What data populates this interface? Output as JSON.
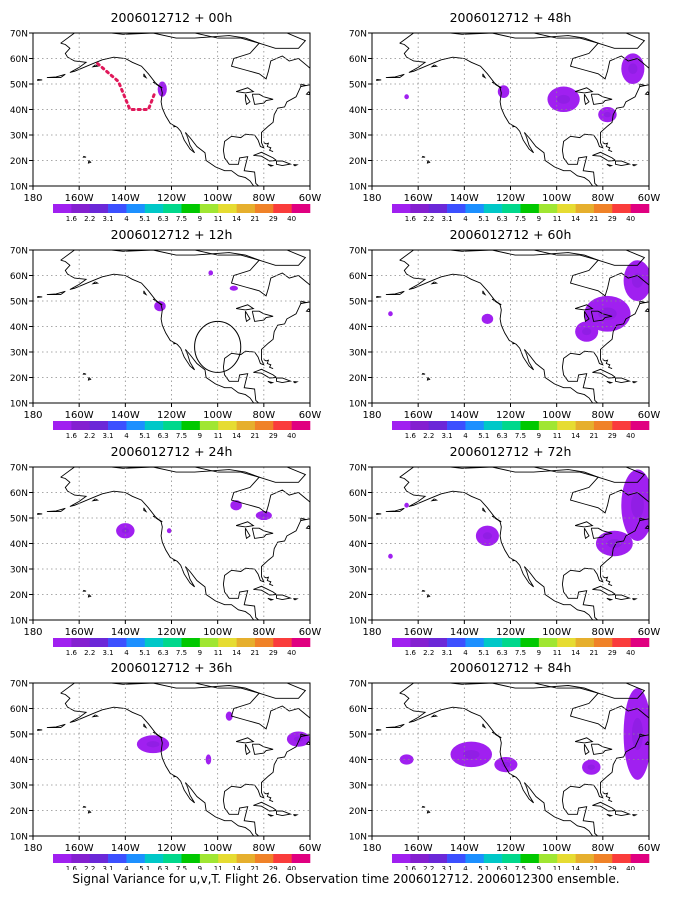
{
  "panels": [
    {
      "title": "2006012712 + 00h",
      "blobs": [
        [
          -124,
          48,
          2.0,
          3.0
        ]
      ],
      "track": [
        [
          -152,
          58
        ],
        [
          -143,
          51
        ],
        [
          -138,
          40
        ],
        [
          -130,
          40
        ],
        [
          -127,
          47
        ]
      ],
      "circle": null
    },
    {
      "title": "2006012712 + 12h",
      "blobs": [
        [
          -125,
          48,
          2.5,
          2.0
        ],
        [
          -103,
          61,
          1.0,
          1.0
        ],
        [
          -93,
          55,
          1.8,
          1.0
        ]
      ],
      "track": null,
      "circle": [
        -100,
        32,
        10
      ]
    },
    {
      "title": "2006012712 + 24h",
      "blobs": [
        [
          -140,
          45,
          4.0,
          3.0
        ],
        [
          -121,
          45,
          1.0,
          1.0
        ],
        [
          -92,
          55,
          2.5,
          2.0
        ],
        [
          -80,
          51,
          3.5,
          1.8
        ]
      ],
      "track": null,
      "circle": null
    },
    {
      "title": "2006012712 + 36h",
      "blobs": [
        [
          -128,
          46,
          7.0,
          3.5
        ],
        [
          -104,
          40,
          1.2,
          2.0
        ],
        [
          -95,
          57,
          1.5,
          1.8
        ],
        [
          -65,
          48,
          5.0,
          3.0
        ]
      ],
      "track": null,
      "circle": null
    },
    {
      "title": "2006012712 + 48h",
      "blobs": [
        [
          -123,
          47,
          2.5,
          2.5
        ],
        [
          -97,
          44,
          7.0,
          5.0
        ],
        [
          -78,
          38,
          4.0,
          3.0
        ],
        [
          -67,
          56,
          5.0,
          6.0
        ],
        [
          -165,
          45,
          1.0,
          1.0
        ]
      ],
      "track": null,
      "circle": null
    },
    {
      "title": "2006012712 + 60h",
      "blobs": [
        [
          -172,
          45,
          1.0,
          1.0
        ],
        [
          -130,
          43,
          2.5,
          2.0
        ],
        [
          -78,
          45,
          10.0,
          7.0
        ],
        [
          -87,
          38,
          5.0,
          4.0
        ],
        [
          -65,
          58,
          6.0,
          8.0
        ]
      ],
      "track": null,
      "circle": null
    },
    {
      "title": "2006012712 + 72h",
      "blobs": [
        [
          -172,
          35,
          1.0,
          1.0
        ],
        [
          -165,
          55,
          1.0,
          1.0
        ],
        [
          -130,
          43,
          5.0,
          4.0
        ],
        [
          -75,
          40,
          8.0,
          5.0
        ],
        [
          -65,
          55,
          7.0,
          14.0
        ]
      ],
      "track": null,
      "circle": null
    },
    {
      "title": "2006012712 + 84h",
      "blobs": [
        [
          -137,
          42,
          9.0,
          5.0
        ],
        [
          -122,
          38,
          5.0,
          3.0
        ],
        [
          -165,
          40,
          3.0,
          2.0
        ],
        [
          -85,
          37,
          4.0,
          3.0
        ],
        [
          -65,
          50,
          6.0,
          18.0
        ]
      ],
      "track": null,
      "circle": null
    }
  ],
  "lon_labels": [
    "180",
    "160W",
    "140W",
    "120W",
    "100W",
    "80W",
    "60W"
  ],
  "lat_labels": [
    "10N",
    "20N",
    "30N",
    "40N",
    "50N",
    "60N",
    "70N"
  ],
  "colorbar": {
    "colors": [
      "#a020f0",
      "#8420d0",
      "#6b28d8",
      "#3c50ff",
      "#1c90ff",
      "#00c8c8",
      "#00d88c",
      "#00c800",
      "#a0e632",
      "#e6dc32",
      "#e6af2d",
      "#f08228",
      "#fa3c3c",
      "#e00080"
    ],
    "labels": [
      "1.6",
      "2.2",
      "3.1",
      "4",
      "5.1",
      "6.3",
      "7.5",
      "9",
      "11",
      "14",
      "21",
      "29",
      "40"
    ]
  },
  "caption": "Signal Variance for u,v,T. Flight 26. Observation time 2006012712. 2006012300 ensemble.",
  "colors": {
    "blob_fill": "#a020f0",
    "blob_core": "#8a1ee0",
    "track": "#e0185a",
    "coast": "#000000",
    "grid": "#8c8c8c"
  }
}
